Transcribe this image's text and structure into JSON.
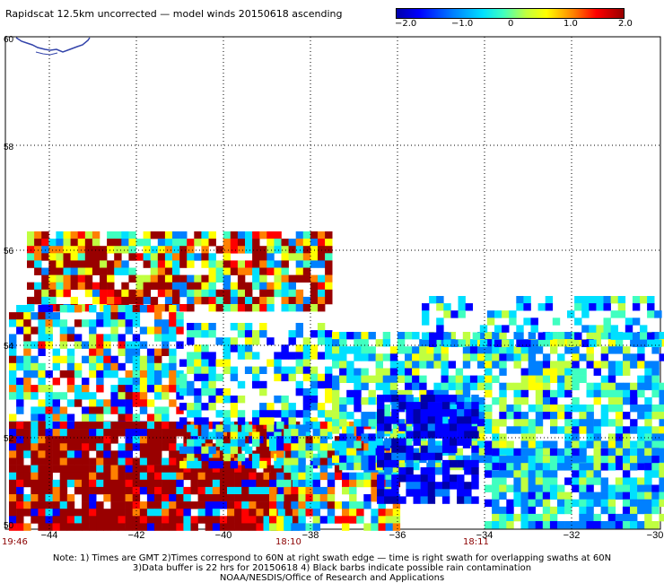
{
  "title": "Rapidscat 12.5km uncorrected — model winds 20150618 ascending",
  "colorbar": {
    "ticks": [
      "−2.0",
      "−1.0",
      "0",
      "1.0",
      "2.0"
    ],
    "colors": [
      "#0000aa",
      "#0000ff",
      "#0080ff",
      "#00e0ff",
      "#40ffc0",
      "#c0ff40",
      "#ffff00",
      "#ff8000",
      "#ff0000",
      "#990000"
    ]
  },
  "map": {
    "lon_labels": [
      "−44",
      "−42",
      "−40",
      "−38",
      "−36",
      "−34",
      "−32",
      "−30"
    ],
    "lat_labels": [
      "60",
      "58",
      "56",
      "54",
      "52",
      "50"
    ],
    "lon_range": [
      -45,
      -30
    ],
    "lat_range": [
      50,
      60
    ]
  },
  "times": [
    "19:46",
    "18:10",
    "18:11"
  ],
  "notes": [
    "Note: 1) Times are GMT 2)Times correspond to 60N at right swath edge — time is right swath for overlapping swaths at 60N",
    "3)Data buffer is 22 hrs for 20150618 4) Black barbs indicate possible rain contamination",
    "NOAA/NESDIS/Office of Research and Applications"
  ]
}
